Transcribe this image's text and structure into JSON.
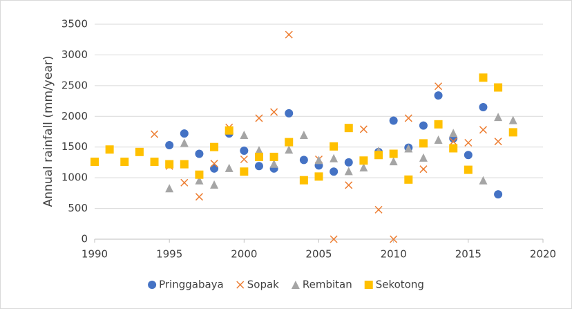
{
  "chart_data": {
    "type": "scatter",
    "y_label": "Annual rainfall (mm/year)",
    "xlim": [
      1990,
      2020
    ],
    "xticks": [
      1990,
      1995,
      2000,
      2005,
      2010,
      2015,
      2020
    ],
    "ylim": [
      0,
      3500
    ],
    "yticks": [
      0,
      500,
      1000,
      1500,
      2000,
      2500,
      3000,
      3500
    ],
    "grid": true,
    "legend": "bottom",
    "series": [
      {
        "name": "Pringgabaya",
        "marker": "circle",
        "color": "#4472c4",
        "x": [
          1995,
          1996,
          1997,
          1998,
          1999,
          2000,
          2001,
          2002,
          2003,
          2004,
          2005,
          2006,
          2007,
          2009,
          2010,
          2011,
          2012,
          2013,
          2014,
          2015,
          2016,
          2017
        ],
        "values": [
          1530,
          1720,
          1390,
          1150,
          1720,
          1440,
          1190,
          1150,
          2050,
          1290,
          1200,
          1100,
          1250,
          1420,
          1930,
          1490,
          1850,
          2340,
          1640,
          1370,
          2150,
          730
        ]
      },
      {
        "name": "Sopak",
        "marker": "cross",
        "color": "#ed7d31",
        "x": [
          1994,
          1995,
          1996,
          1997,
          1998,
          1999,
          2000,
          2001,
          2002,
          2003,
          2005,
          2006,
          2007,
          2008,
          2009,
          2010,
          2011,
          2012,
          2013,
          2014,
          2015,
          2016,
          2017
        ],
        "values": [
          1710,
          1190,
          920,
          690,
          1230,
          1820,
          1300,
          1970,
          2070,
          3330,
          1300,
          0,
          880,
          1790,
          480,
          0,
          1970,
          1140,
          2490,
          1590,
          1570,
          1780,
          1590
        ]
      },
      {
        "name": "Rembitan",
        "marker": "triangle",
        "color": "#a5a5a5",
        "x": [
          1995,
          1996,
          1997,
          1998,
          1999,
          2000,
          2001,
          2002,
          2003,
          2004,
          2005,
          2006,
          2007,
          2008,
          2009,
          2010,
          2011,
          2012,
          2013,
          2014,
          2016,
          2017,
          2018
        ],
        "values": [
          830,
          1570,
          960,
          890,
          1160,
          1700,
          1450,
          1230,
          1460,
          1700,
          1290,
          1320,
          1110,
          1170,
          1440,
          1270,
          1480,
          1330,
          1620,
          1730,
          960,
          1990,
          1940
        ]
      },
      {
        "name": "Sekotong",
        "marker": "square",
        "color": "#ffc000",
        "x": [
          1990,
          1991,
          1992,
          1993,
          1994,
          1995,
          1996,
          1997,
          1998,
          1999,
          2000,
          2001,
          2002,
          2003,
          2004,
          2005,
          2006,
          2007,
          2008,
          2009,
          2010,
          2011,
          2012,
          2013,
          2014,
          2015,
          2016,
          2017,
          2018
        ],
        "values": [
          1260,
          1460,
          1260,
          1420,
          1260,
          1220,
          1220,
          1050,
          1500,
          1770,
          1100,
          1340,
          1340,
          1580,
          960,
          1020,
          1510,
          1810,
          1280,
          1370,
          1390,
          970,
          1560,
          1870,
          1480,
          1130,
          2630,
          2470,
          1740
        ]
      }
    ]
  }
}
